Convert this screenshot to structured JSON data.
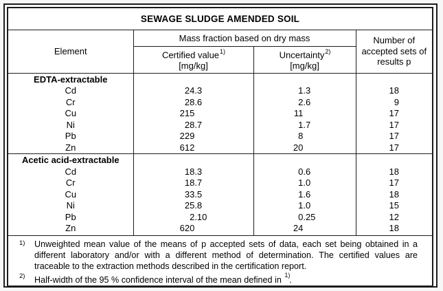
{
  "title": "SEWAGE SLUDGE AMENDED SOIL",
  "header": {
    "element": "Element",
    "mass_fraction": "Mass fraction based on dry mass",
    "certified": {
      "label": "Certified value",
      "ref": "1)",
      "unit": "[mg/kg]"
    },
    "uncertainty": {
      "label": "Uncertainty",
      "ref": "2)",
      "unit": "[mg/kg]"
    },
    "accepted_sets_lines": [
      "Number of",
      "accepted sets of",
      "results p"
    ]
  },
  "sections": [
    {
      "name": "EDTA-extractable",
      "rows": [
        {
          "element": "Cd",
          "certified": "24.3",
          "uncertainty": "1.3",
          "p": "18"
        },
        {
          "element": "Cr",
          "certified": "28.6",
          "uncertainty": "2.6",
          "p": "9"
        },
        {
          "element": "Cu",
          "certified": "215",
          "uncertainty": "11",
          "p": "17"
        },
        {
          "element": "Ni",
          "certified": "28.7",
          "uncertainty": "1.7",
          "p": "17"
        },
        {
          "element": "Pb",
          "certified": "229",
          "uncertainty": "8",
          "p": "17"
        },
        {
          "element": "Zn",
          "certified": "612",
          "uncertainty": "20",
          "p": "17"
        }
      ]
    },
    {
      "name": "Acetic acid-extractable",
      "rows": [
        {
          "element": "Cd",
          "certified": "18.3",
          "uncertainty": "0.6",
          "p": "18"
        },
        {
          "element": "Cr",
          "certified": "18.7",
          "uncertainty": "1.0",
          "p": "17"
        },
        {
          "element": "Cu",
          "certified": "33.5",
          "uncertainty": "1.6",
          "p": "18"
        },
        {
          "element": "Ni",
          "certified": "25.8",
          "uncertainty": "1.0",
          "p": "15"
        },
        {
          "element": "Pb",
          "certified": "2.10",
          "uncertainty": "0.25",
          "p": "12"
        },
        {
          "element": "Zn",
          "certified": "620",
          "uncertainty": "24",
          "p": "18"
        }
      ]
    }
  ],
  "footnotes": [
    {
      "marker": "1)",
      "text": "Unweighted mean value of the means of p accepted sets of data, each set being obtained in a different laboratory and/or with a different method of determination. The certified values are traceable to the extraction methods described in the certification report."
    },
    {
      "marker": "2)",
      "text": "Half-width of the 95 % confidence interval of the mean defined in",
      "ref": "1)",
      "suffix": "."
    }
  ],
  "colors": {
    "border": "#1c1c1c",
    "page_background": "#f7f7f7",
    "paper": "#ffffff",
    "text": "#000000"
  }
}
